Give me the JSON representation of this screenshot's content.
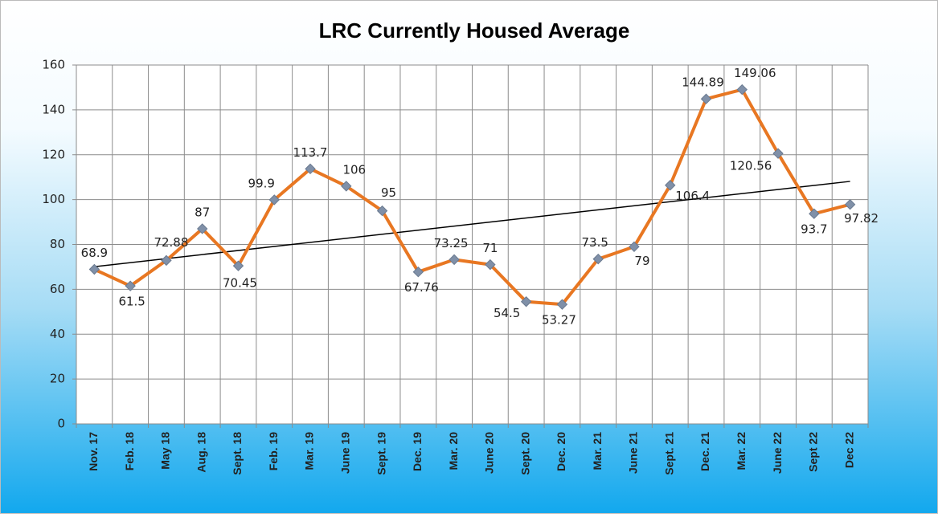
{
  "chart_data": {
    "type": "line",
    "title": "LRC Currently Housed Average",
    "categories": [
      "Nov. 17",
      "Feb. 18",
      "May 18",
      "Aug. 18",
      "Sept. 18",
      "Feb. 19",
      "Mar. 19",
      "June 19",
      "Sept. 19",
      "Dec. 19",
      "Mar. 20",
      "June 20",
      "Sept. 20",
      "Dec. 20",
      "Mar. 21",
      "June 21",
      "Sept. 21",
      "Dec. 21",
      "Mar. 22",
      "June 22",
      "Sept 22",
      "Dec 22"
    ],
    "series": [
      {
        "color": "#e87722",
        "marker_color": "#8090a8",
        "values": [
          68.9,
          61.5,
          72.88,
          87,
          70.45,
          99.9,
          113.7,
          106,
          95,
          67.76,
          73.25,
          71,
          54.5,
          53.27,
          73.5,
          79,
          106.4,
          144.89,
          149.06,
          120.56,
          93.7,
          97.82
        ]
      }
    ],
    "ylim": [
      0,
      160
    ],
    "yticks": [
      0,
      20,
      40,
      60,
      80,
      100,
      120,
      140,
      160
    ],
    "grid": true,
    "trendline": true,
    "trendline_color": "#000000"
  }
}
